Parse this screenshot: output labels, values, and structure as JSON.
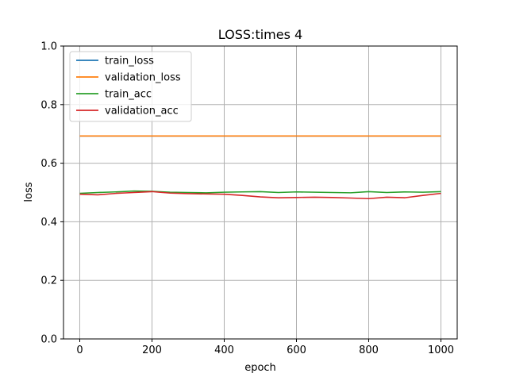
{
  "chart_data": {
    "type": "line",
    "title": "LOSS:times 4",
    "xlabel": "epoch",
    "ylabel": "loss",
    "xlim": [
      -45,
      1045
    ],
    "ylim": [
      0.0,
      1.0
    ],
    "xticks": [
      0,
      200,
      400,
      600,
      800,
      1000
    ],
    "xtick_labels": [
      "0",
      "200",
      "400",
      "600",
      "800",
      "1000"
    ],
    "yticks": [
      0.0,
      0.2,
      0.4,
      0.6,
      0.8,
      1.0
    ],
    "ytick_labels": [
      "0.0",
      "0.2",
      "0.4",
      "0.6",
      "0.8",
      "1.0"
    ],
    "grid": true,
    "legend_position": "top-left",
    "x": [
      0,
      50,
      100,
      150,
      200,
      250,
      300,
      350,
      400,
      450,
      500,
      550,
      600,
      650,
      700,
      750,
      800,
      850,
      900,
      950,
      1000
    ],
    "series": [
      {
        "name": "train_loss",
        "color": "#1f77b4",
        "values": [
          0.693,
          0.693,
          0.693,
          0.693,
          0.693,
          0.693,
          0.693,
          0.693,
          0.693,
          0.693,
          0.693,
          0.693,
          0.693,
          0.693,
          0.693,
          0.693,
          0.693,
          0.693,
          0.693,
          0.693,
          0.693
        ]
      },
      {
        "name": "validation_loss",
        "color": "#ff7f0e",
        "values": [
          0.693,
          0.693,
          0.693,
          0.693,
          0.693,
          0.693,
          0.693,
          0.693,
          0.693,
          0.693,
          0.693,
          0.693,
          0.693,
          0.693,
          0.693,
          0.693,
          0.693,
          0.693,
          0.693,
          0.693,
          0.693
        ]
      },
      {
        "name": "train_acc",
        "color": "#2ca02c",
        "values": [
          0.497,
          0.5,
          0.502,
          0.505,
          0.504,
          0.501,
          0.5,
          0.499,
          0.501,
          0.502,
          0.503,
          0.5,
          0.502,
          0.501,
          0.5,
          0.499,
          0.503,
          0.5,
          0.502,
          0.501,
          0.503
        ]
      },
      {
        "name": "validation_acc",
        "color": "#d62728",
        "values": [
          0.494,
          0.492,
          0.497,
          0.5,
          0.503,
          0.498,
          0.496,
          0.495,
          0.494,
          0.49,
          0.485,
          0.482,
          0.483,
          0.484,
          0.483,
          0.481,
          0.479,
          0.484,
          0.482,
          0.49,
          0.497
        ]
      }
    ]
  }
}
